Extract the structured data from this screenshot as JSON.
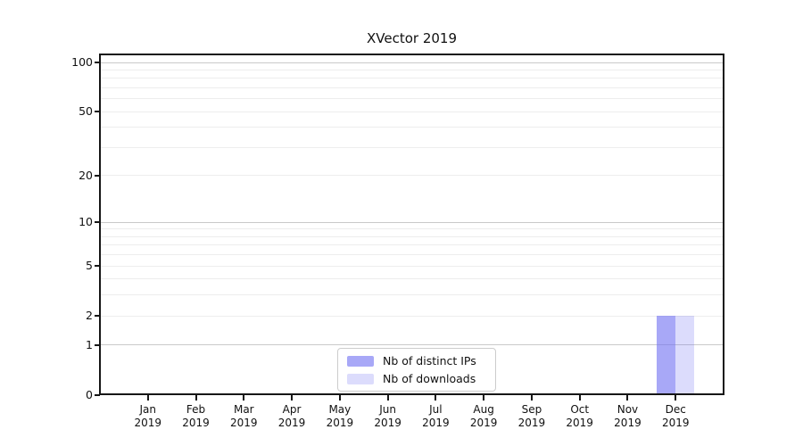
{
  "chart_data": {
    "type": "bar",
    "title": "XVector 2019",
    "categories": [
      "Jan",
      "Feb",
      "Mar",
      "Apr",
      "May",
      "Jun",
      "Jul",
      "Aug",
      "Sep",
      "Oct",
      "Nov",
      "Dec"
    ],
    "category_year": "2019",
    "series": [
      {
        "name": "Nb of distinct IPs",
        "color": "rgba(115,115,242,0.62)",
        "values": [
          0,
          0,
          0,
          0,
          0,
          0,
          0,
          0,
          0,
          0,
          0,
          2
        ]
      },
      {
        "name": "Nb of downloads",
        "color": "rgba(115,115,242,0.25)",
        "values": [
          0,
          0,
          0,
          0,
          0,
          0,
          0,
          0,
          0,
          0,
          0,
          2
        ]
      }
    ],
    "y_scale": "log1p",
    "y_ticks": [
      0,
      1,
      2,
      5,
      10,
      20,
      50,
      100
    ],
    "gridlines": {
      "major": [
        1,
        10,
        100
      ],
      "faint": [
        2,
        3,
        4,
        5,
        6,
        7,
        8,
        9,
        20,
        30,
        40,
        50,
        60,
        70,
        80,
        90
      ]
    },
    "ylim": [
      0,
      112
    ],
    "xlabel": "",
    "ylabel": "",
    "grid": true,
    "legend_position": "lower center"
  },
  "colors": {
    "bar_distinct_ips": "#a8a8f7",
    "bar_downloads": "#dcdcf9",
    "grid_major": "#c9c9c9",
    "grid_faint": "#ededed",
    "spine": "#161616",
    "text": "#111111",
    "legend_border": "#cccccc",
    "background": "#ffffff"
  }
}
